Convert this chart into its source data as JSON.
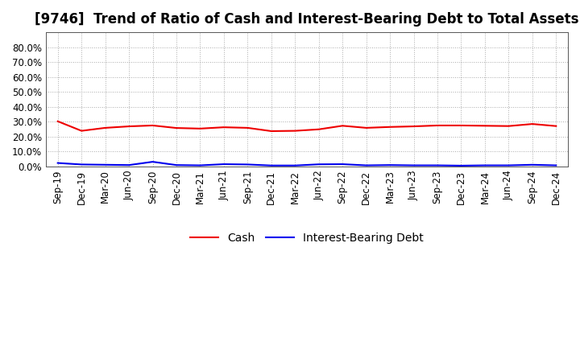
{
  "title": "[9746]  Trend of Ratio of Cash and Interest-Bearing Debt to Total Assets",
  "x_labels": [
    "Sep-19",
    "Dec-19",
    "Mar-20",
    "Jun-20",
    "Sep-20",
    "Dec-20",
    "Mar-21",
    "Jun-21",
    "Sep-21",
    "Dec-21",
    "Mar-22",
    "Jun-22",
    "Sep-22",
    "Dec-22",
    "Mar-23",
    "Jun-23",
    "Sep-23",
    "Dec-23",
    "Mar-24",
    "Jun-24",
    "Sep-24",
    "Dec-24"
  ],
  "cash": [
    0.302,
    0.238,
    0.258,
    0.268,
    0.274,
    0.257,
    0.253,
    0.262,
    0.258,
    0.236,
    0.238,
    0.248,
    0.272,
    0.258,
    0.264,
    0.268,
    0.274,
    0.274,
    0.272,
    0.27,
    0.284,
    0.27
  ],
  "debt": [
    0.022,
    0.012,
    0.01,
    0.008,
    0.03,
    0.008,
    0.006,
    0.014,
    0.012,
    0.005,
    0.005,
    0.013,
    0.014,
    0.006,
    0.008,
    0.006,
    0.006,
    0.004,
    0.006,
    0.006,
    0.01,
    0.006
  ],
  "cash_color": "#ee0000",
  "debt_color": "#0000ee",
  "background_color": "#ffffff",
  "plot_bg_color": "#ffffff",
  "grid_color": "#aaaaaa",
  "ylim": [
    0.0,
    0.9
  ],
  "yticks": [
    0.0,
    0.1,
    0.2,
    0.3,
    0.4,
    0.5,
    0.6,
    0.7,
    0.8
  ],
  "legend_labels": [
    "Cash",
    "Interest-Bearing Debt"
  ],
  "title_fontsize": 12,
  "tick_fontsize": 8.5,
  "legend_fontsize": 10
}
